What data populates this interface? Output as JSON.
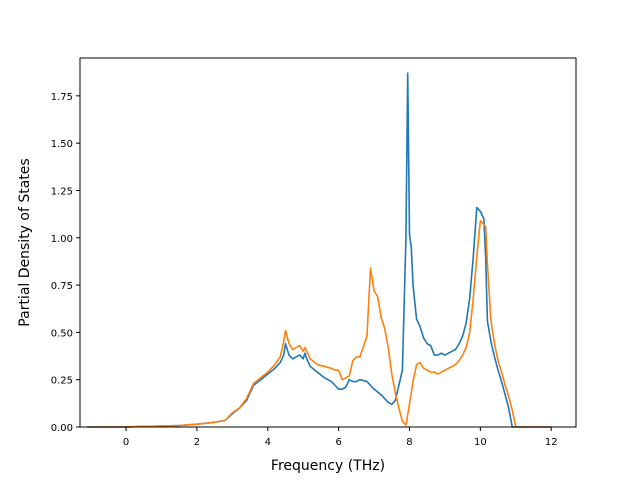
{
  "chart_data": {
    "type": "line",
    "title": "",
    "xlabel": "Frequency (THz)",
    "ylabel": "Partial Density of States",
    "xlim": [
      -1.3,
      12.7
    ],
    "ylim": [
      0.0,
      1.95
    ],
    "xticks": [
      0,
      2,
      4,
      6,
      8,
      10,
      12
    ],
    "xtick_labels": [
      "0",
      "2",
      "4",
      "6",
      "8",
      "10",
      "12"
    ],
    "yticks": [
      0.0,
      0.25,
      0.5,
      0.75,
      1.0,
      1.25,
      1.5,
      1.75
    ],
    "ytick_labels": [
      "0.00",
      "0.25",
      "0.50",
      "0.75",
      "1.00",
      "1.25",
      "1.50",
      "1.75"
    ],
    "grid": false,
    "legend": "none",
    "series": [
      {
        "color": "#1f77b4",
        "x": [
          -1.1,
          -0.5,
          0.0,
          0.5,
          1.0,
          1.5,
          2.0,
          2.5,
          2.8,
          3.0,
          3.2,
          3.4,
          3.5,
          3.6,
          3.8,
          4.0,
          4.2,
          4.35,
          4.45,
          4.5,
          4.6,
          4.7,
          4.8,
          4.9,
          5.0,
          5.05,
          5.1,
          5.2,
          5.4,
          5.6,
          5.8,
          5.9,
          6.0,
          6.1,
          6.2,
          6.3,
          6.4,
          6.5,
          6.6,
          6.8,
          6.9,
          7.0,
          7.2,
          7.4,
          7.5,
          7.6,
          7.7,
          7.8,
          7.9,
          7.95,
          8.0,
          8.05,
          8.1,
          8.2,
          8.3,
          8.4,
          8.5,
          8.6,
          8.7,
          8.8,
          8.9,
          9.0,
          9.1,
          9.2,
          9.3,
          9.4,
          9.5,
          9.6,
          9.7,
          9.8,
          9.9,
          10.0,
          10.05,
          10.1,
          10.15,
          10.2,
          10.3,
          10.4,
          10.5,
          10.6,
          10.7,
          10.8,
          10.9,
          11.0,
          11.1,
          11.5,
          12.0
        ],
        "y": [
          0.0,
          0.0,
          0.0,
          0.003,
          0.005,
          0.008,
          0.015,
          0.025,
          0.035,
          0.07,
          0.1,
          0.14,
          0.18,
          0.22,
          0.25,
          0.28,
          0.31,
          0.34,
          0.38,
          0.44,
          0.38,
          0.36,
          0.37,
          0.38,
          0.36,
          0.39,
          0.36,
          0.32,
          0.29,
          0.26,
          0.24,
          0.22,
          0.2,
          0.2,
          0.21,
          0.25,
          0.24,
          0.24,
          0.25,
          0.24,
          0.22,
          0.2,
          0.17,
          0.13,
          0.12,
          0.14,
          0.22,
          0.3,
          1.0,
          1.87,
          1.02,
          0.95,
          0.75,
          0.57,
          0.53,
          0.47,
          0.44,
          0.43,
          0.38,
          0.38,
          0.39,
          0.38,
          0.39,
          0.4,
          0.41,
          0.44,
          0.48,
          0.55,
          0.68,
          0.9,
          1.16,
          1.14,
          1.12,
          1.1,
          0.9,
          0.56,
          0.45,
          0.37,
          0.3,
          0.24,
          0.17,
          0.1,
          0.0,
          0.0,
          0.0,
          0.0,
          0.0
        ]
      },
      {
        "color": "#ff7f0e",
        "x": [
          -1.1,
          -0.5,
          0.0,
          0.5,
          1.0,
          1.5,
          2.0,
          2.5,
          2.8,
          3.0,
          3.2,
          3.4,
          3.5,
          3.6,
          3.8,
          4.0,
          4.2,
          4.35,
          4.45,
          4.5,
          4.6,
          4.7,
          4.8,
          4.9,
          5.0,
          5.05,
          5.1,
          5.2,
          5.4,
          5.6,
          5.8,
          5.9,
          6.0,
          6.1,
          6.2,
          6.3,
          6.4,
          6.5,
          6.6,
          6.8,
          6.9,
          7.0,
          7.1,
          7.2,
          7.3,
          7.4,
          7.5,
          7.6,
          7.7,
          7.8,
          7.9,
          8.0,
          8.1,
          8.2,
          8.3,
          8.4,
          8.5,
          8.6,
          8.7,
          8.8,
          8.9,
          9.0,
          9.1,
          9.2,
          9.3,
          9.4,
          9.5,
          9.6,
          9.7,
          9.8,
          9.9,
          10.0,
          10.05,
          10.1,
          10.15,
          10.2,
          10.3,
          10.4,
          10.5,
          10.6,
          10.7,
          10.8,
          10.9,
          11.0,
          11.1,
          11.5,
          12.0
        ],
        "y": [
          0.0,
          0.0,
          0.0,
          0.003,
          0.005,
          0.008,
          0.015,
          0.025,
          0.035,
          0.075,
          0.1,
          0.15,
          0.19,
          0.23,
          0.26,
          0.29,
          0.33,
          0.37,
          0.45,
          0.51,
          0.44,
          0.41,
          0.42,
          0.43,
          0.4,
          0.42,
          0.4,
          0.36,
          0.33,
          0.32,
          0.31,
          0.3,
          0.3,
          0.25,
          0.26,
          0.27,
          0.35,
          0.37,
          0.37,
          0.48,
          0.84,
          0.72,
          0.69,
          0.58,
          0.52,
          0.42,
          0.28,
          0.18,
          0.1,
          0.03,
          0.01,
          0.12,
          0.24,
          0.33,
          0.34,
          0.31,
          0.3,
          0.29,
          0.29,
          0.28,
          0.29,
          0.3,
          0.31,
          0.32,
          0.33,
          0.35,
          0.38,
          0.42,
          0.5,
          0.68,
          0.9,
          1.09,
          1.08,
          1.07,
          1.06,
          0.86,
          0.56,
          0.44,
          0.35,
          0.29,
          0.22,
          0.16,
          0.09,
          0.0,
          0.0,
          0.0,
          0.0
        ]
      }
    ]
  }
}
